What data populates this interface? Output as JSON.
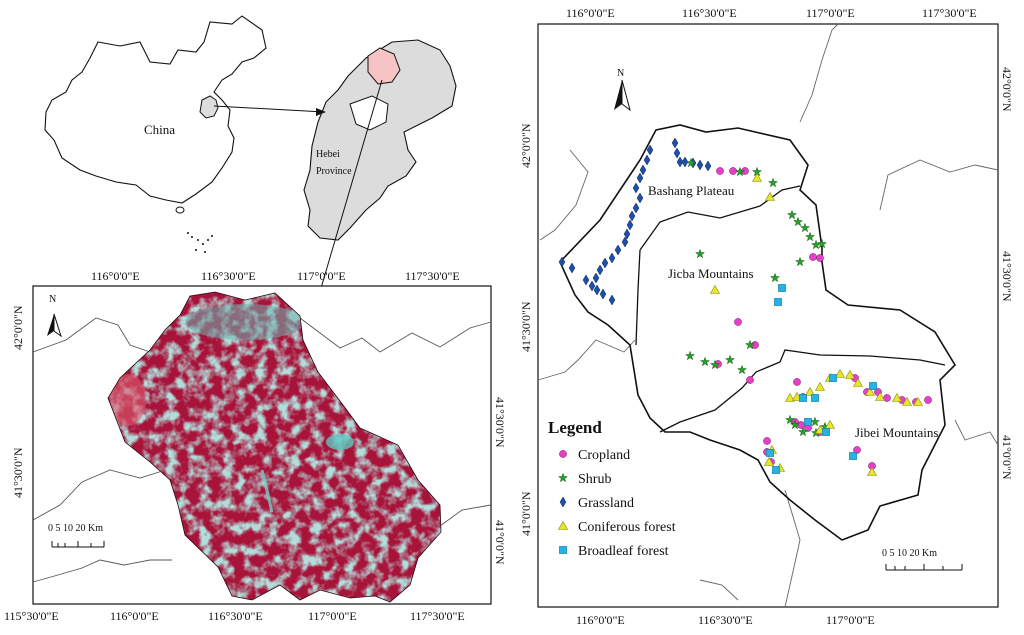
{
  "inset_china": {
    "country_label": "China",
    "province_label_line1": "Hebei",
    "province_label_line2": "Province"
  },
  "satellite_map": {
    "top_ticks": [
      "116°0'0\"E",
      "116°30'0\"E",
      "117°0'0\"E",
      "117°30'0\"E"
    ],
    "bottom_ticks": [
      "115°30'0\"E",
      "116°0'0\"E",
      "116°30'0\"E",
      "117°0'0\"E",
      "117°30'0\"E"
    ],
    "left_ticks": [
      "42°0'0\"N",
      "41°30'0\"N"
    ],
    "right_ticks": [
      "41°30'0\"N",
      "41°0'0\"N"
    ],
    "north_label": "N",
    "scale_text": "0  5 10      20 Km",
    "image_colors": {
      "vegetation": "#b0143a",
      "bare": "#6fb3b0"
    }
  },
  "sample_map": {
    "top_ticks": [
      "116°0'0\"E",
      "116°30'0\"E",
      "117°0'0\"E",
      "117°30'0\"E"
    ],
    "bottom_ticks": [
      "116°0'0\"E",
      "116°30'0\"E",
      "117°0'0\"E"
    ],
    "left_ticks": [
      "42°0'0\"N",
      "41°30'0\"N",
      "41°0'0\"N"
    ],
    "right_ticks": [
      "42°0'0\"N",
      "41°30'0\"N",
      "41°0'0\"N"
    ],
    "north_label": "N",
    "regions": [
      "Bashang Plateau",
      "Jicba Mountains",
      "Jibei Mountains"
    ],
    "scale_text": "0   5  10       20 Km",
    "legend": {
      "title": "Legend",
      "items": [
        {
          "label": "Cropland",
          "symbol": "circle",
          "color": "#e63fc8"
        },
        {
          "label": "Shrub",
          "symbol": "star",
          "color": "#2ca02c"
        },
        {
          "label": "Grassland",
          "symbol": "diamond",
          "color": "#1f4fa8"
        },
        {
          "label": "Coniferous forest",
          "symbol": "triangle",
          "color": "#e8e62a"
        },
        {
          "label": "Broadleaf forest",
          "symbol": "square",
          "color": "#25b3e6"
        }
      ]
    }
  }
}
